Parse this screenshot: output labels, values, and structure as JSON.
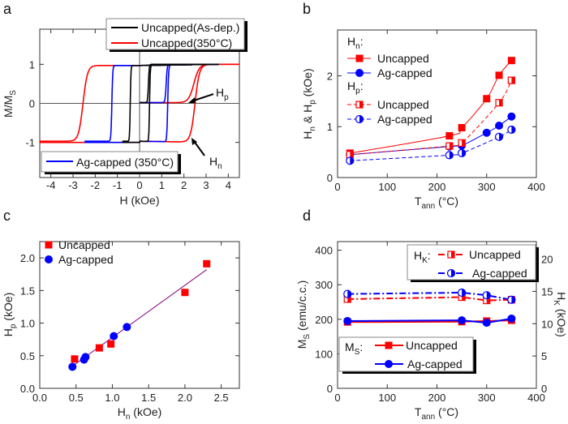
{
  "colors": {
    "red": "#ff0000",
    "blue": "#0000ff",
    "black": "#000000"
  },
  "chart_data": [
    {
      "panel": "a",
      "type": "line",
      "title": "",
      "xlabel": "H (kOe)",
      "ylabel": {
        "main": "M/M",
        "sub": "S"
      },
      "xlim": [
        -4.5,
        4.5
      ],
      "ylim": [
        -1.9,
        1.9
      ],
      "xticks": [
        -4,
        -3,
        -2,
        -1,
        0,
        1,
        2,
        3,
        4
      ],
      "yticks": [
        -1,
        0,
        1
      ],
      "series": [
        {
          "name": "Uncapped(As-dep.)",
          "color": "#000000",
          "coercive_down_kOe": -0.42,
          "coercive_up_kOe": 0.45,
          "virgin_switch_kOe": 0.4,
          "width": 0.03
        },
        {
          "name": "Uncapped(350°C)",
          "color": "#ff0000",
          "coercive_down_kOe": -2.55,
          "coercive_up_kOe": 2.5,
          "virgin_switch_kOe": 2.45,
          "width": 0.2
        },
        {
          "name": "Ag-capped (350°C)",
          "color": "#0000ff",
          "coercive_down_kOe": -1.25,
          "coercive_up_kOe": 1.27,
          "virgin_switch_kOe": 1.2,
          "width": 0.04
        }
      ],
      "legend": [
        {
          "label": "Uncapped(As-dep.)"
        },
        {
          "label": "Uncapped(350°C)"
        },
        {
          "label": "Ag-capped (350°C)"
        }
      ],
      "annotations": [
        {
          "main": "H",
          "sub": "p"
        },
        {
          "main": "H",
          "sub": "n"
        }
      ]
    },
    {
      "panel": "b",
      "type": "line",
      "xlabel": {
        "main": "T",
        "sub": "ann",
        "rest": " (°C)"
      },
      "ylabel": "Hn & Hp (kOe)",
      "ylabel_parts": {
        "a": "H",
        "as": "n",
        "b": " & H",
        "bs": "p",
        "c": " (kOe)"
      },
      "xlim": [
        0,
        400
      ],
      "ylim": [
        0,
        2.9
      ],
      "xticks": [
        0,
        100,
        200,
        300,
        400
      ],
      "yticks": [
        0,
        1,
        2
      ],
      "series": [
        {
          "name": "Hn Uncapped",
          "x": [
            25,
            225,
            250,
            300,
            325,
            350
          ],
          "y": [
            0.48,
            0.82,
            0.98,
            1.55,
            2.01,
            2.3
          ],
          "color": "#ff0000",
          "marker": "square",
          "dash": false
        },
        {
          "name": "Hn Ag-capped",
          "x": [
            25,
            225,
            250,
            300,
            325,
            350
          ],
          "y": [
            0.45,
            0.61,
            0.63,
            0.88,
            1.02,
            1.2
          ],
          "color": "#0000ff",
          "marker": "circle",
          "dash": false
        },
        {
          "name": "Hp Uncapped",
          "x": [
            25,
            225,
            250,
            325,
            350
          ],
          "y": [
            0.45,
            0.62,
            0.68,
            1.47,
            1.91
          ],
          "color": "#ff0000",
          "marker": "half-square",
          "dash": true
        },
        {
          "name": "Hp Ag-capped",
          "x": [
            25,
            225,
            250,
            325,
            350
          ],
          "y": [
            0.33,
            0.44,
            0.48,
            0.8,
            0.94
          ],
          "color": "#0000ff",
          "marker": "half-circle",
          "dash": true
        }
      ],
      "legend": {
        "hn": {
          "main": "H",
          "sub": "n",
          "rest": ":"
        },
        "hp": {
          "main": "H",
          "sub": "p",
          "rest": ":"
        },
        "items": [
          "Uncapped",
          "Ag-capped",
          "Uncapped",
          "Ag-capped"
        ]
      }
    },
    {
      "panel": "c",
      "type": "scatter",
      "xlabel": {
        "main": "H",
        "sub": "n",
        "rest": " (kOe)"
      },
      "ylabel": {
        "main": "H",
        "sub": "p",
        "rest": " (kOe)"
      },
      "xlim": [
        0,
        2.75
      ],
      "ylim": [
        0,
        2.25
      ],
      "xticks": [
        "0.0",
        "0.5",
        "1.0",
        "1.5",
        "2.0",
        "2.5"
      ],
      "yticks": [
        "0.0",
        "0.5",
        "1.0",
        "1.5",
        "2.0"
      ],
      "series": [
        {
          "name": "Uncapped",
          "x": [
            0.48,
            0.82,
            0.98,
            2.0,
            2.3
          ],
          "y": [
            0.45,
            0.62,
            0.68,
            1.47,
            1.91
          ],
          "color": "#ff0000",
          "marker": "square"
        },
        {
          "name": "Ag-capped",
          "x": [
            0.45,
            0.61,
            0.63,
            1.02,
            1.2
          ],
          "y": [
            0.33,
            0.44,
            0.48,
            0.8,
            0.94
          ],
          "color": "#0000ff",
          "marker": "circle"
        }
      ],
      "fit": {
        "x": [
          0.45,
          2.3
        ],
        "y": [
          0.34,
          1.82
        ],
        "color": "#800080"
      }
    },
    {
      "panel": "d",
      "type": "line",
      "xlabel": {
        "main": "T",
        "sub": "ann",
        "rest": " (°C)"
      },
      "ylabel": {
        "main": "M",
        "sub": "S",
        "rest": " (emu/c.c.)"
      },
      "y2label": {
        "main": "H",
        "sub": "K",
        "rest": " (kOe)"
      },
      "xlim": [
        0,
        400
      ],
      "ylim": [
        0,
        425
      ],
      "y2lim": [
        0,
        22.7
      ],
      "xticks": [
        0,
        100,
        200,
        300,
        400
      ],
      "yticks": [
        0,
        100,
        200,
        300,
        400
      ],
      "y2ticks": [
        0,
        5,
        10,
        15,
        20
      ],
      "series": [
        {
          "name": "Ms Uncapped",
          "axis": "left",
          "x": [
            20,
            250,
            300,
            350
          ],
          "y": [
            192,
            193,
            195,
            197
          ],
          "color": "#ff0000",
          "marker": "square",
          "dash": ""
        },
        {
          "name": "Ms Ag-capped",
          "axis": "left",
          "x": [
            20,
            250,
            300,
            350
          ],
          "y": [
            195,
            197,
            190,
            202
          ],
          "color": "#0000ff",
          "marker": "circle",
          "dash": ""
        },
        {
          "name": "Hk Uncapped",
          "axis": "right",
          "x": [
            20,
            250,
            300,
            350
          ],
          "y": [
            13.8,
            14.1,
            13.6,
            13.7
          ],
          "color": "#ff0000",
          "marker": "half-square",
          "dash": "8,3,2,3"
        },
        {
          "name": "Hk Ag-capped",
          "axis": "right",
          "x": [
            20,
            250,
            300,
            350
          ],
          "y": [
            14.6,
            14.8,
            14.4,
            13.7
          ],
          "color": "#0000ff",
          "marker": "half-circle",
          "dash": "8,3,2,3"
        }
      ],
      "legend": {
        "hk": {
          "main": "H",
          "sub": "K",
          "rest": ":"
        },
        "ms": {
          "main": "M",
          "sub": "S",
          "rest": ":"
        },
        "items": [
          "Uncapped",
          "Ag-capped",
          "Uncapped",
          "Ag-capped"
        ]
      }
    }
  ],
  "panel_labels": [
    "a",
    "b",
    "c",
    "d"
  ]
}
